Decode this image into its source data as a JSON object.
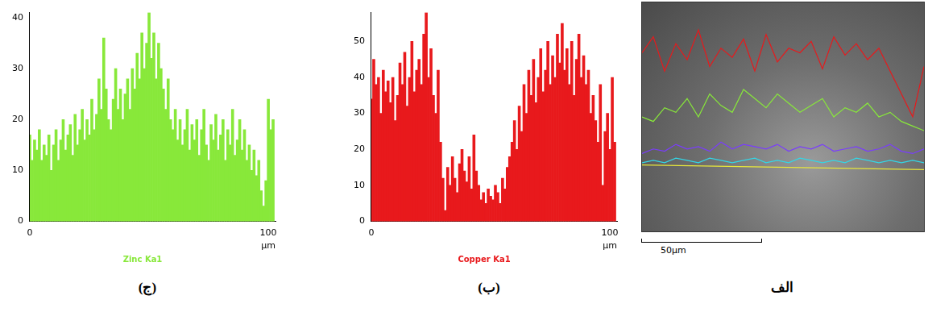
{
  "chart_data": [
    {
      "type": "bar",
      "panel_label": "(ج)",
      "title": "Zinc Ka1",
      "x_label": "µm",
      "color": "#88e83a",
      "grid": false,
      "xlim": [
        0,
        103
      ],
      "xticks": [
        0,
        100
      ],
      "ylim": [
        0,
        41
      ],
      "yticks": [
        0,
        10,
        20,
        30,
        40
      ],
      "x": [
        0,
        1,
        2,
        3,
        4,
        5,
        6,
        7,
        8,
        9,
        10,
        11,
        12,
        13,
        14,
        15,
        16,
        17,
        18,
        19,
        20,
        21,
        22,
        23,
        24,
        25,
        26,
        27,
        28,
        29,
        30,
        31,
        32,
        33,
        34,
        35,
        36,
        37,
        38,
        39,
        40,
        41,
        42,
        43,
        44,
        45,
        46,
        47,
        48,
        49,
        50,
        51,
        52,
        53,
        54,
        55,
        56,
        57,
        58,
        59,
        60,
        61,
        62,
        63,
        64,
        65,
        66,
        67,
        68,
        69,
        70,
        71,
        72,
        73,
        74,
        75,
        76,
        77,
        78,
        79,
        80,
        81,
        82,
        83,
        84,
        85,
        86,
        87,
        88,
        89,
        90,
        91,
        92,
        93,
        94,
        95,
        96,
        97,
        98,
        99,
        100,
        101,
        102
      ],
      "values": [
        17,
        12,
        16,
        14,
        18,
        12,
        15,
        13,
        17,
        10,
        15,
        18,
        12,
        16,
        20,
        14,
        17,
        19,
        13,
        21,
        15,
        18,
        22,
        16,
        20,
        17,
        24,
        18,
        21,
        28,
        22,
        36,
        26,
        20,
        18,
        24,
        30,
        22,
        26,
        20,
        25,
        28,
        22,
        30,
        26,
        33,
        28,
        37,
        30,
        35,
        41,
        32,
        37,
        28,
        35,
        30,
        26,
        22,
        28,
        20,
        18,
        22,
        16,
        20,
        15,
        18,
        22,
        14,
        19,
        16,
        20,
        13,
        18,
        22,
        15,
        12,
        19,
        16,
        21,
        14,
        17,
        20,
        12,
        18,
        15,
        22,
        13,
        16,
        20,
        14,
        18,
        12,
        15,
        10,
        14,
        9,
        12,
        6,
        3,
        8,
        24,
        18,
        20
      ]
    },
    {
      "type": "bar",
      "panel_label": "(ب)",
      "title": "Copper Ka1",
      "x_label": "µm",
      "color": "#e8191c",
      "grid": false,
      "xlim": [
        0,
        103
      ],
      "xticks": [
        0,
        100
      ],
      "ylim": [
        0,
        58
      ],
      "yticks": [
        0,
        10,
        20,
        30,
        40,
        50
      ],
      "x": [
        0,
        1,
        2,
        3,
        4,
        5,
        6,
        7,
        8,
        9,
        10,
        11,
        12,
        13,
        14,
        15,
        16,
        17,
        18,
        19,
        20,
        21,
        22,
        23,
        24,
        25,
        26,
        27,
        28,
        29,
        30,
        31,
        32,
        33,
        34,
        35,
        36,
        37,
        38,
        39,
        40,
        41,
        42,
        43,
        44,
        45,
        46,
        47,
        48,
        49,
        50,
        51,
        52,
        53,
        54,
        55,
        56,
        57,
        58,
        59,
        60,
        61,
        62,
        63,
        64,
        65,
        66,
        67,
        68,
        69,
        70,
        71,
        72,
        73,
        74,
        75,
        76,
        77,
        78,
        79,
        80,
        81,
        82,
        83,
        84,
        85,
        86,
        87,
        88,
        89,
        90,
        91,
        92,
        93,
        94,
        95,
        96,
        97,
        98,
        99,
        100,
        101,
        102
      ],
      "values": [
        34,
        45,
        38,
        40,
        30,
        42,
        36,
        39,
        33,
        40,
        28,
        35,
        44,
        38,
        47,
        32,
        40,
        50,
        36,
        42,
        45,
        38,
        52,
        58,
        40,
        48,
        35,
        30,
        42,
        22,
        12,
        3,
        15,
        10,
        18,
        12,
        8,
        16,
        20,
        14,
        11,
        18,
        9,
        24,
        14,
        10,
        6,
        8,
        5,
        9,
        7,
        6,
        10,
        8,
        5,
        12,
        9,
        15,
        18,
        22,
        28,
        20,
        32,
        25,
        38,
        30,
        42,
        35,
        45,
        33,
        40,
        48,
        36,
        42,
        50,
        38,
        46,
        40,
        52,
        44,
        55,
        42,
        48,
        38,
        50,
        35,
        45,
        52,
        40,
        46,
        38,
        42,
        30,
        35,
        28,
        22,
        38,
        10,
        25,
        30,
        20,
        40,
        22
      ]
    },
    {
      "type": "line",
      "panel_label": "الف",
      "scale_bar": "50µm",
      "tick_labels": false,
      "grid": false,
      "xlim": [
        0,
        100
      ],
      "ylim": [
        0,
        100
      ],
      "series": [
        {
          "color": "#e8191c",
          "x": [
            0,
            4,
            8,
            12,
            16,
            20,
            24,
            28,
            32,
            36,
            40,
            44,
            48,
            52,
            56,
            60,
            64,
            68,
            72,
            76,
            80,
            84,
            88,
            92,
            96,
            100
          ],
          "values": [
            78,
            85,
            70,
            82,
            75,
            88,
            72,
            80,
            76,
            84,
            70,
            86,
            74,
            80,
            78,
            83,
            71,
            85,
            77,
            82,
            75,
            80,
            70,
            60,
            50,
            72
          ]
        },
        {
          "color": "#88e83a",
          "x": [
            0,
            4,
            8,
            12,
            16,
            20,
            24,
            28,
            32,
            36,
            40,
            44,
            48,
            52,
            56,
            60,
            64,
            68,
            72,
            76,
            80,
            84,
            88,
            92,
            96,
            100
          ],
          "values": [
            50,
            48,
            54,
            52,
            58,
            50,
            60,
            55,
            52,
            62,
            58,
            54,
            60,
            56,
            52,
            55,
            58,
            50,
            54,
            52,
            56,
            50,
            52,
            48,
            46,
            44
          ]
        },
        {
          "color": "#7a3cff",
          "x": [
            0,
            4,
            8,
            12,
            16,
            20,
            24,
            28,
            32,
            36,
            40,
            44,
            48,
            52,
            56,
            60,
            64,
            68,
            72,
            76,
            80,
            84,
            88,
            92,
            96,
            100
          ],
          "values": [
            34,
            36,
            35,
            38,
            36,
            37,
            35,
            39,
            36,
            38,
            37,
            36,
            38,
            35,
            37,
            36,
            38,
            35,
            36,
            37,
            35,
            36,
            38,
            35,
            34,
            36
          ]
        },
        {
          "color": "#33d6e6",
          "x": [
            0,
            4,
            8,
            12,
            16,
            20,
            24,
            28,
            32,
            36,
            40,
            44,
            48,
            52,
            56,
            60,
            64,
            68,
            72,
            76,
            80,
            84,
            88,
            92,
            96,
            100
          ],
          "values": [
            30,
            31,
            30,
            32,
            31,
            30,
            32,
            31,
            30,
            31,
            32,
            30,
            31,
            30,
            32,
            31,
            30,
            31,
            30,
            32,
            31,
            30,
            31,
            30,
            31,
            30
          ]
        },
        {
          "color": "#e8e83a",
          "x": [
            0,
            100
          ],
          "values": [
            29,
            27
          ]
        }
      ]
    }
  ]
}
